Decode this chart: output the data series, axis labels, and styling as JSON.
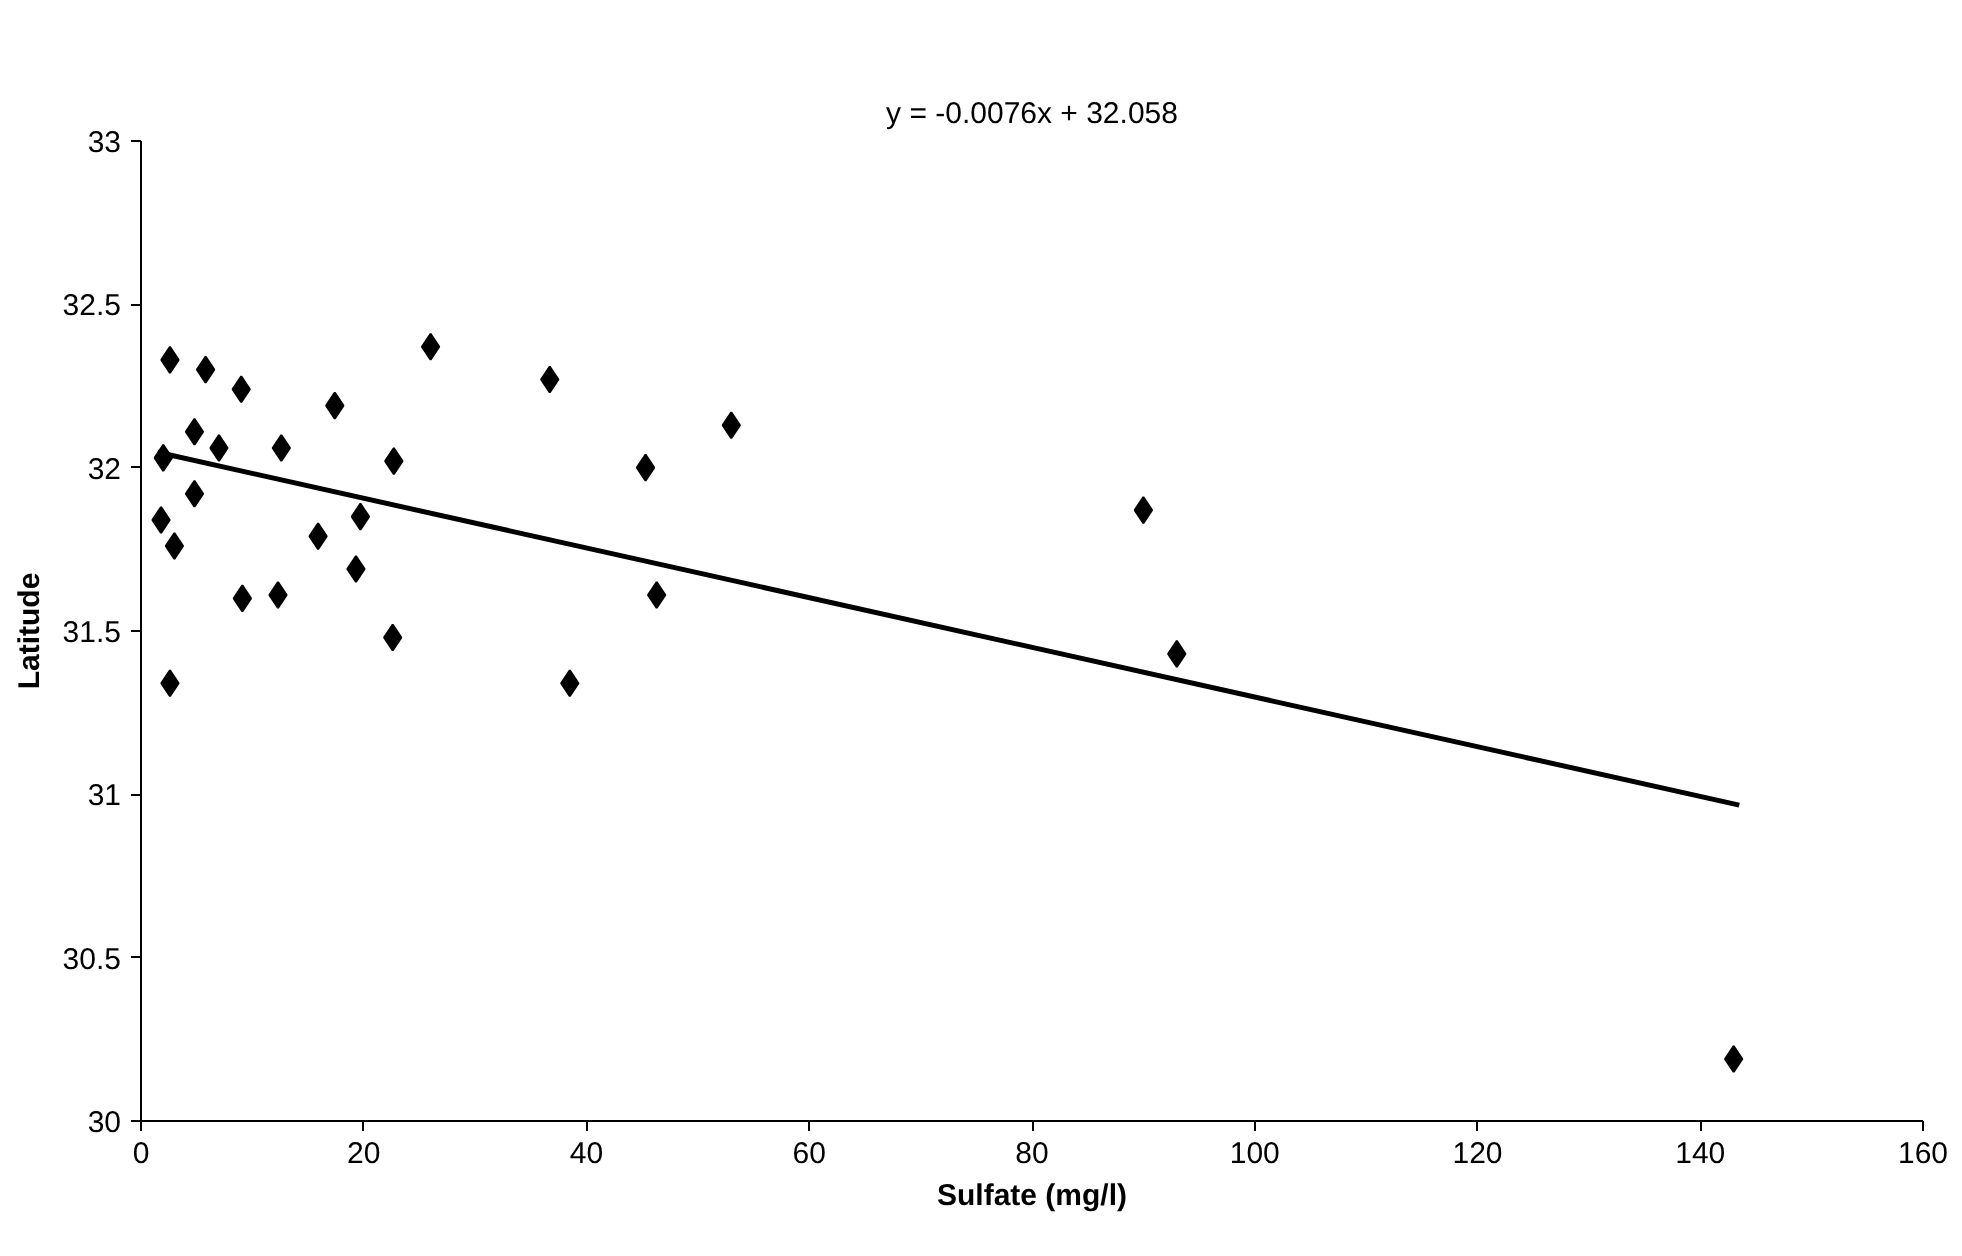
{
  "chart_data": {
    "type": "scatter",
    "xlabel": "Sulfate (mg/l)",
    "ylabel": "Latitude",
    "annotations": [
      "y = -0.0076x + 32.058"
    ],
    "xlim": [
      0,
      160
    ],
    "xticks": [
      0,
      20,
      40,
      60,
      80,
      100,
      120,
      140,
      160
    ],
    "ylim": [
      30,
      33
    ],
    "yticks": [
      30,
      30.5,
      31,
      31.5,
      32,
      32.5,
      33
    ],
    "grid": false,
    "marker": "diamond",
    "series": [
      {
        "color": "#000000",
        "x": [
          2.6,
          5.8,
          9.0,
          26.0,
          36.7,
          17.4,
          53.0,
          4.8,
          7.0,
          12.6,
          2.0,
          22.7,
          45.3,
          4.8,
          1.8,
          19.7,
          3.0,
          15.9,
          19.3,
          9.1,
          12.3,
          46.3,
          22.6,
          2.6,
          38.5,
          90.0,
          93.0,
          143.0
        ],
        "values": [
          32.33,
          32.3,
          32.24,
          32.37,
          32.27,
          32.19,
          32.13,
          32.11,
          32.06,
          32.06,
          32.03,
          32.02,
          32.0,
          31.92,
          31.84,
          31.85,
          31.76,
          31.79,
          31.69,
          31.6,
          31.61,
          31.61,
          31.48,
          31.34,
          31.34,
          31.87,
          31.43,
          30.19
        ]
      },
      {
        "type": "line",
        "color": "#000000",
        "x": [
          1.5,
          143.5
        ],
        "values": [
          32.047,
          30.967
        ],
        "marker": "none",
        "line_style": "solid"
      }
    ]
  }
}
